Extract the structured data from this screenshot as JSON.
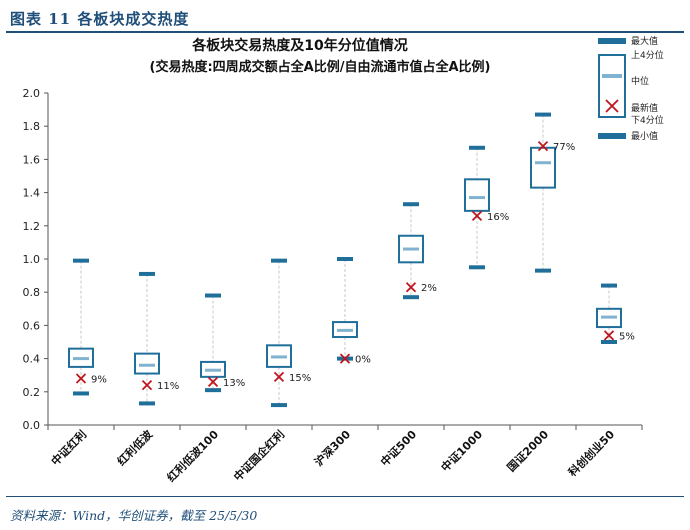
{
  "figure_label": "图表 11   各板块成交热度",
  "source": "资料来源：Wind，华创证券，截至 25/5/30",
  "colors": {
    "brand": "#1f4e79",
    "box": "#1f6f9a",
    "median": "#7fb3cf",
    "latest": "#c0141c",
    "whisker": "#c8c8c8"
  },
  "legend": {
    "max": "最大值",
    "q3": "上4分位",
    "median": "中位",
    "latest": "最新值",
    "q1": "下4分位",
    "min": "最小值"
  },
  "chart_data": {
    "type": "box",
    "title": "各板块交易热度及10年分位值情况",
    "subtitle": "(交易热度:四周成交额占全A比例/自由流通市值占全A比例)",
    "ylim": [
      0,
      2.0
    ],
    "yticks": [
      "0.0",
      "0.2",
      "0.4",
      "0.6",
      "0.8",
      "1.0",
      "1.2",
      "1.4",
      "1.6",
      "1.8",
      "2.0"
    ],
    "grid": false,
    "legend_position": "top-right",
    "categories": [
      "中证红利",
      "红利低波",
      "红利低波100",
      "中证国企红利",
      "沪深300",
      "中证500",
      "中证1000",
      "国证2000",
      "科创创业50"
    ],
    "series": [
      {
        "max": 0.99,
        "q3": 0.46,
        "median": 0.4,
        "q1": 0.35,
        "min": 0.19,
        "latest": 0.28,
        "percentile": "9%"
      },
      {
        "max": 0.91,
        "q3": 0.43,
        "median": 0.36,
        "q1": 0.31,
        "min": 0.13,
        "latest": 0.24,
        "percentile": "11%"
      },
      {
        "max": 0.78,
        "q3": 0.38,
        "median": 0.33,
        "q1": 0.29,
        "min": 0.21,
        "latest": 0.26,
        "percentile": "13%"
      },
      {
        "max": 0.99,
        "q3": 0.48,
        "median": 0.41,
        "q1": 0.35,
        "min": 0.12,
        "latest": 0.29,
        "percentile": "15%"
      },
      {
        "max": 1.0,
        "q3": 0.62,
        "median": 0.57,
        "q1": 0.53,
        "min": 0.4,
        "latest": 0.4,
        "percentile": "0%"
      },
      {
        "max": 1.33,
        "q3": 1.14,
        "median": 1.06,
        "q1": 0.98,
        "min": 0.77,
        "latest": 0.83,
        "percentile": "2%"
      },
      {
        "max": 1.67,
        "q3": 1.48,
        "median": 1.37,
        "q1": 1.29,
        "min": 0.95,
        "latest": 1.26,
        "percentile": "16%"
      },
      {
        "max": 1.87,
        "q3": 1.67,
        "median": 1.58,
        "q1": 1.43,
        "min": 0.93,
        "latest": 1.68,
        "percentile": "77%"
      },
      {
        "max": 0.84,
        "q3": 0.7,
        "median": 0.65,
        "q1": 0.59,
        "min": 0.5,
        "latest": 0.54,
        "percentile": "5%"
      }
    ]
  }
}
